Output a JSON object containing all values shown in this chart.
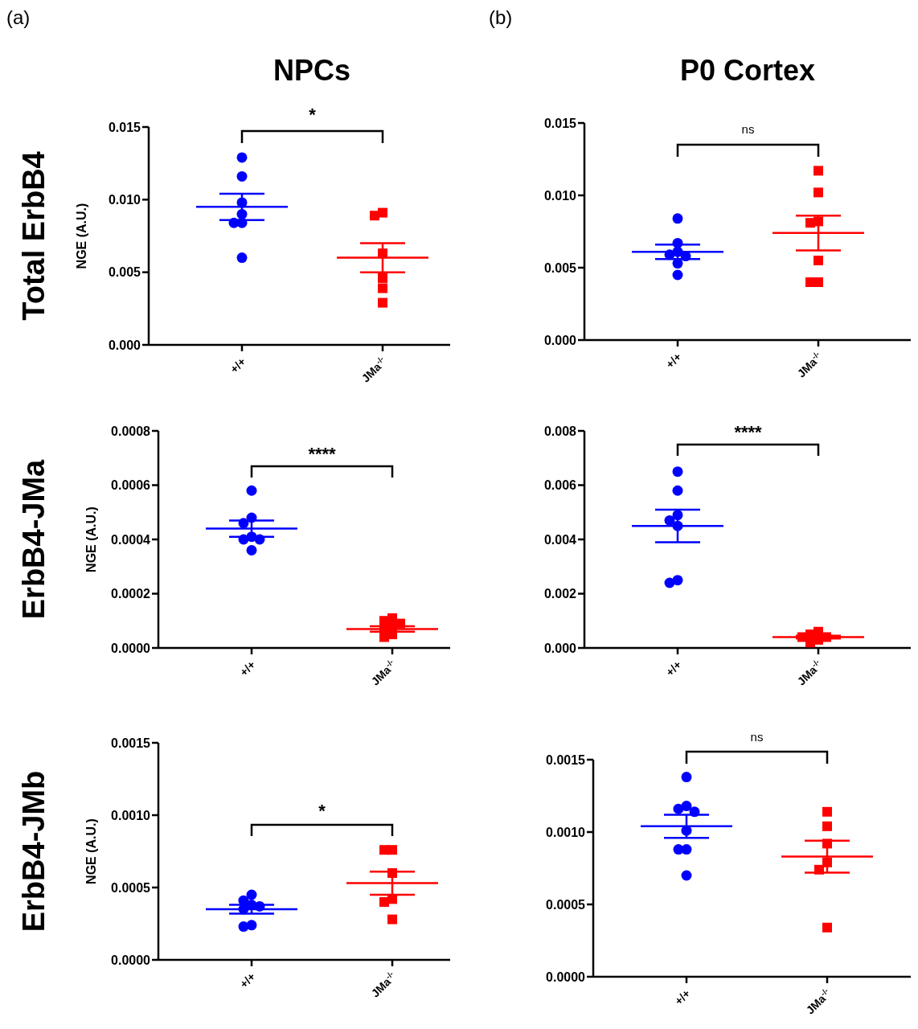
{
  "chart_data": [
    {
      "type": "scatter",
      "title": "NPCs",
      "ylabel": "NGE (A.U.)",
      "annotations": [
        "(a)",
        "Total ErbB4",
        "*"
      ],
      "categories": [
        "+/+",
        "JMa$^{-/-}$"
      ],
      "ylim": [
        0,
        0.015
      ],
      "yticks": [
        {
          "value": 0,
          "label": "0.000"
        },
        0.005,
        {
          "value": 0.01,
          "label": "0.010"
        },
        0.015
      ],
      "series": [
        {
          "type": "box",
          "colors": [
            "#0000ff",
            "#ff0000"
          ],
          "boxes": [
            {
              "low": 0.0086,
              "q1": 0.0095,
              "median": 0.0095,
              "q3": 0.0095,
              "high": 0.0104
            },
            {
              "low": 0.005,
              "q1": 0.006,
              "median": 0.006,
              "q3": 0.006,
              "high": 0.007
            }
          ]
        },
        {
          "type": "scatter",
          "marker": "circle",
          "color": "#0000ff",
          "x": [
            "+/+",
            "+/+",
            "+/+",
            "+/+",
            "+/+",
            "+/+",
            "+/+"
          ],
          "values": [
            0.0129,
            0.0116,
            0.0098,
            0.009,
            0.0084,
            0.0084,
            0.006
          ]
        },
        {
          "type": "scatter",
          "marker": "square",
          "color": "#ff0000",
          "x": [
            "JMa$^{-/-}$",
            "JMa$^{-/-}$",
            "JMa$^{-/-}$",
            "JMa$^{-/-}$",
            "JMa$^{-/-}$",
            "JMa$^{-/-}$"
          ],
          "values": [
            0.0089,
            0.0091,
            0.0063,
            0.0046,
            0.0039,
            0.0029
          ]
        }
      ]
    },
    {
      "type": "scatter",
      "title": "P0 Cortex",
      "annotations": [
        "(b)",
        "ns"
      ],
      "categories": [
        "+/+",
        "JMa$^{-/-}$"
      ],
      "ylim": [
        0,
        0.015
      ],
      "yticks": [
        {
          "value": 0,
          "label": "0.000"
        },
        0.005,
        {
          "value": 0.01,
          "label": "0.010"
        },
        0.015
      ],
      "series": [
        {
          "type": "box",
          "colors": [
            "#0000ff",
            "#ff0000"
          ],
          "boxes": [
            {
              "low": 0.0056,
              "q1": 0.0061,
              "median": 0.0061,
              "q3": 0.0061,
              "high": 0.0066
            },
            {
              "low": 0.0062,
              "q1": 0.0074,
              "median": 0.0074,
              "q3": 0.0074,
              "high": 0.0086
            }
          ]
        },
        {
          "type": "scatter",
          "marker": "circle",
          "color": "#0000ff",
          "x": [
            "+/+",
            "+/+",
            "+/+",
            "+/+",
            "+/+",
            "+/+",
            "+/+"
          ],
          "values": [
            0.0084,
            0.0067,
            0.0061,
            0.0059,
            0.0058,
            0.0053,
            0.0045
          ]
        },
        {
          "type": "scatter",
          "marker": "square",
          "color": "#ff0000",
          "x": [
            "JMa$^{-/-}$",
            "JMa$^{-/-}$",
            "JMa$^{-/-}$",
            "JMa$^{-/-}$",
            "JMa$^{-/-}$",
            "JMa$^{-/-}$",
            "JMa$^{-/-}$"
          ],
          "values": [
            0.0117,
            0.0102,
            0.0082,
            0.0081,
            0.0055,
            0.004,
            0.004
          ]
        }
      ]
    },
    {
      "type": "scatter",
      "ylabel": "NGE (A.U.)",
      "annotations": [
        "ErbB4-JMa",
        "****"
      ],
      "categories": [
        "+/+",
        "JMa$^{-/-}$"
      ],
      "ylim": [
        0,
        0.0008
      ],
      "yticks": [
        {
          "value": 0,
          "label": "0.0000"
        },
        0.0002,
        0.0004,
        0.0006,
        0.0008
      ],
      "series": [
        {
          "type": "box",
          "colors": [
            "#0000ff",
            "#ff0000"
          ],
          "boxes": [
            {
              "low": 0.00041,
              "q1": 0.00044,
              "median": 0.00044,
              "q3": 0.00044,
              "high": 0.00047
            },
            {
              "low": 6e-05,
              "q1": 7e-05,
              "median": 7e-05,
              "q3": 7e-05,
              "high": 8e-05
            }
          ]
        },
        {
          "type": "scatter",
          "marker": "circle",
          "color": "#0000ff",
          "x": [
            "+/+",
            "+/+",
            "+/+",
            "+/+",
            "+/+",
            "+/+",
            "+/+"
          ],
          "values": [
            0.00058,
            0.00048,
            0.00046,
            0.00041,
            0.0004,
            0.0004,
            0.00036
          ]
        },
        {
          "type": "scatter",
          "marker": "square",
          "color": "#ff0000",
          "x": [
            "JMa$^{-/-}$",
            "JMa$^{-/-}$",
            "JMa$^{-/-}$",
            "JMa$^{-/-}$",
            "JMa$^{-/-}$",
            "JMa$^{-/-}$",
            "JMa$^{-/-}$"
          ],
          "values": [
            0.0001,
            0.00011,
            8e-05,
            5e-05,
            4e-05,
            7e-05,
            9e-05
          ]
        }
      ]
    },
    {
      "type": "scatter",
      "annotations": [
        "****"
      ],
      "categories": [
        "+/+",
        "JMa$^{-/-}$"
      ],
      "ylim": [
        0,
        0.008
      ],
      "yticks": [
        {
          "value": 0,
          "label": "0.000"
        },
        0.002,
        0.004,
        0.006,
        0.008
      ],
      "series": [
        {
          "type": "box",
          "colors": [
            "#0000ff",
            "#ff0000"
          ],
          "boxes": [
            {
              "low": 0.0039,
              "q1": 0.0045,
              "median": 0.0045,
              "q3": 0.0045,
              "high": 0.0051
            },
            {
              "low": 0.00035,
              "q1": 0.0004,
              "median": 0.0004,
              "q3": 0.0004,
              "high": 0.00045
            }
          ]
        },
        {
          "type": "scatter",
          "marker": "circle",
          "color": "#0000ff",
          "x": [
            "+/+",
            "+/+",
            "+/+",
            "+/+",
            "+/+",
            "+/+",
            "+/+"
          ],
          "values": [
            0.0065,
            0.0058,
            0.0049,
            0.0047,
            0.0045,
            0.0025,
            0.0024
          ]
        },
        {
          "type": "scatter",
          "marker": "square",
          "color": "#ff0000",
          "x": [
            "JMa$^{-/-}$",
            "JMa$^{-/-}$",
            "JMa$^{-/-}$",
            "JMa$^{-/-}$",
            "JMa$^{-/-}$",
            "JMa$^{-/-}$"
          ],
          "values": [
            0.0003,
            0.0005,
            0.0004,
            0.0004,
            0.0002,
            0.0006
          ]
        }
      ]
    },
    {
      "type": "scatter",
      "ylabel": "NGE (A.U.)",
      "annotations": [
        "ErbB4-JMb",
        "*"
      ],
      "categories": [
        "+/+",
        "JMa$^{-/-}$"
      ],
      "ylim": [
        0,
        0.0015
      ],
      "yticks": [
        {
          "value": 0,
          "label": "0.0000"
        },
        0.0005,
        {
          "value": 0.001,
          "label": "0.0010"
        },
        0.0015
      ],
      "series": [
        {
          "type": "box",
          "colors": [
            "#0000ff",
            "#ff0000"
          ],
          "boxes": [
            {
              "low": 0.00032,
              "q1": 0.00035,
              "median": 0.00035,
              "q3": 0.00035,
              "high": 0.00038
            },
            {
              "low": 0.00045,
              "q1": 0.00053,
              "median": 0.00053,
              "q3": 0.00053,
              "high": 0.00061
            }
          ]
        },
        {
          "type": "scatter",
          "marker": "circle",
          "color": "#0000ff",
          "x": [
            "+/+",
            "+/+",
            "+/+",
            "+/+",
            "+/+",
            "+/+",
            "+/+"
          ],
          "values": [
            0.00045,
            0.00041,
            0.00038,
            0.00037,
            0.00035,
            0.00024,
            0.00023
          ]
        },
        {
          "type": "scatter",
          "marker": "square",
          "color": "#ff0000",
          "x": [
            "JMa$^{-/-}$",
            "JMa$^{-/-}$",
            "JMa$^{-/-}$",
            "JMa$^{-/-}$",
            "JMa$^{-/-}$",
            "JMa$^{-/-}$"
          ],
          "values": [
            0.00076,
            0.00076,
            0.0006,
            0.00042,
            0.0004,
            0.00028
          ]
        }
      ]
    },
    {
      "type": "scatter",
      "annotations": [
        "ns"
      ],
      "categories": [
        "+/+",
        "JMa$^{-/-}$"
      ],
      "ylim": [
        0,
        0.0015
      ],
      "yticks": [
        {
          "value": 0,
          "label": "0.0000"
        },
        0.0005,
        {
          "value": 0.001,
          "label": "0.0010"
        },
        0.0015
      ],
      "series": [
        {
          "type": "box",
          "colors": [
            "#0000ff",
            "#ff0000"
          ],
          "boxes": [
            {
              "low": 0.00096,
              "q1": 0.00104,
              "median": 0.00104,
              "q3": 0.00104,
              "high": 0.00112
            },
            {
              "low": 0.00072,
              "q1": 0.00083,
              "median": 0.00083,
              "q3": 0.00083,
              "high": 0.00094
            }
          ]
        },
        {
          "type": "scatter",
          "marker": "circle",
          "color": "#0000ff",
          "x": [
            "+/+",
            "+/+",
            "+/+",
            "+/+",
            "+/+",
            "+/+",
            "+/+",
            "+/+"
          ],
          "values": [
            0.00138,
            0.00118,
            0.00116,
            0.00114,
            0.00101,
            0.00088,
            0.00088,
            0.0007
          ]
        },
        {
          "type": "scatter",
          "marker": "square",
          "color": "#ff0000",
          "x": [
            "JMa$^{-/-}$",
            "JMa$^{-/-}$",
            "JMa$^{-/-}$",
            "JMa$^{-/-}$",
            "JMa$^{-/-}$",
            "JMa$^{-/-}$"
          ],
          "values": [
            0.00114,
            0.00104,
            0.00092,
            0.00079,
            0.00074,
            0.00034
          ]
        }
      ]
    }
  ]
}
